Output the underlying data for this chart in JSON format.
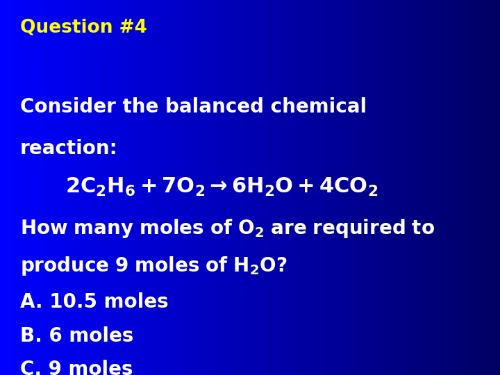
{
  "background_left": "#0000FF",
  "background_right": "#000080",
  "title": "Question #4",
  "title_color": "#FFFF00",
  "title_fontsize": 19,
  "text_color": "#FFFFFF",
  "main_fontsize": 20,
  "answer_fontsize": 20,
  "equation_fontsize": 22,
  "line1": "Consider the balanced chemical",
  "line2": "reaction:",
  "answerA": "A. 10.5 moles",
  "answerB": "B. 6 moles",
  "answerC": "C. 9 moles"
}
